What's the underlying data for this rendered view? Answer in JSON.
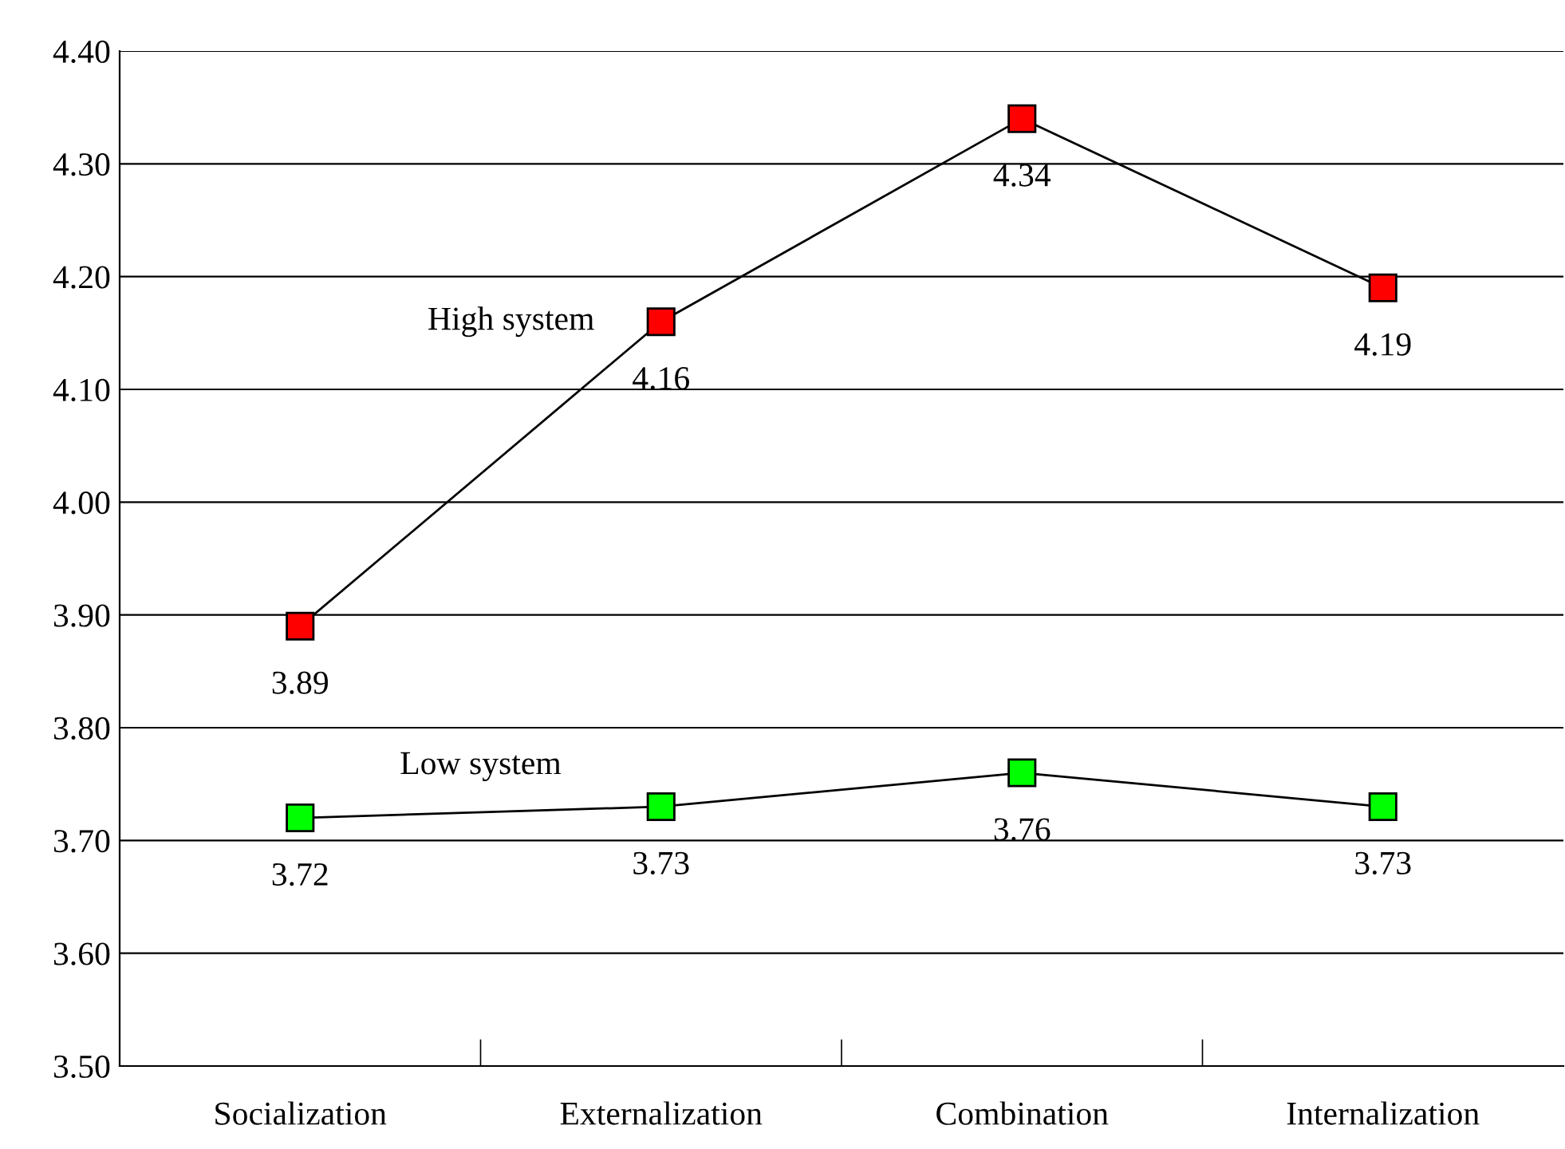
{
  "chart_data": {
    "type": "line",
    "categories": [
      "Socialization",
      "Externalization",
      "Combination",
      "Internalization"
    ],
    "series": [
      {
        "name": "High system",
        "color": "#ff0000",
        "values": [
          3.89,
          4.16,
          4.34,
          4.19
        ]
      },
      {
        "name": "Low system",
        "color": "#00ff00",
        "values": [
          3.72,
          3.73,
          3.76,
          3.73
        ]
      }
    ],
    "ylim": [
      3.5,
      4.4
    ],
    "yticks": [
      {
        "value": 3.5,
        "label": "3.50"
      },
      {
        "value": 3.6,
        "label": "3.60"
      },
      {
        "value": 3.7,
        "label": "3.70"
      },
      {
        "value": 3.8,
        "label": "3.80"
      },
      {
        "value": 3.9,
        "label": "3.90"
      },
      {
        "value": 4.0,
        "label": "4.00"
      },
      {
        "value": 4.1,
        "label": "4.10"
      },
      {
        "value": 4.2,
        "label": "4.20"
      },
      {
        "value": 4.3,
        "label": "4.30"
      },
      {
        "value": 4.4,
        "label": "4.40"
      }
    ],
    "grid": "y",
    "marker": "square",
    "line_style": "solid",
    "data_labels": true,
    "legend": false
  }
}
